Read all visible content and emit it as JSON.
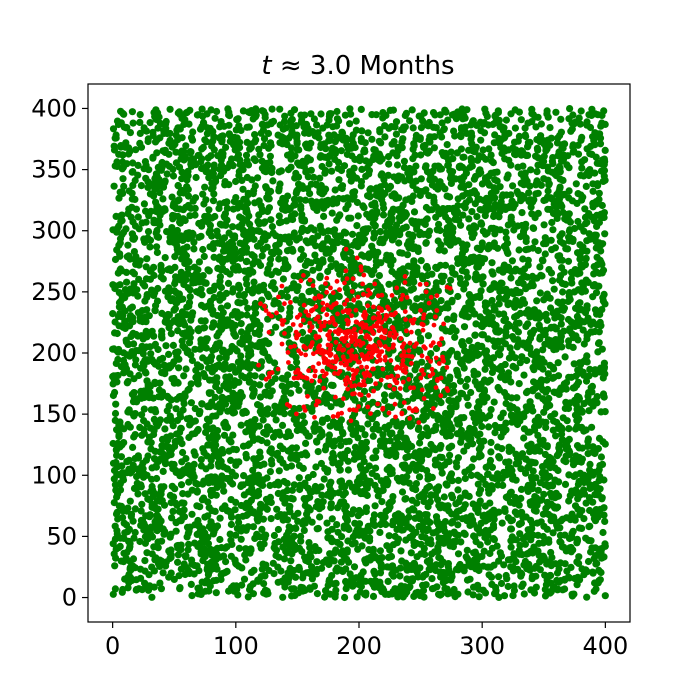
{
  "chart_data": {
    "type": "scatter",
    "title_math": "t ≈",
    "title_rest": "3.0 Months",
    "xlabel": "",
    "ylabel": "",
    "xlim": [
      -20,
      420
    ],
    "ylim": [
      -20,
      420
    ],
    "grid": false,
    "x_ticks": [
      0,
      100,
      200,
      300,
      400
    ],
    "y_ticks": [
      0,
      50,
      100,
      150,
      200,
      250,
      300,
      350,
      400
    ],
    "x_tick_labels": [
      "0",
      "100",
      "200",
      "300",
      "400"
    ],
    "y_tick_labels": [
      "0",
      "50",
      "100",
      "150",
      "200",
      "250",
      "300",
      "350",
      "400"
    ],
    "series": [
      {
        "color": "#008000",
        "distribution": "uniform",
        "x_range": [
          0,
          400
        ],
        "y_range": [
          0,
          400
        ],
        "count": 6500
      },
      {
        "color": "#ff0000",
        "distribution": "cluster",
        "center": [
          200,
          205
        ],
        "spread": [
          35,
          30
        ],
        "x_range": [
          115,
          280
        ],
        "y_range": [
          140,
          285
        ],
        "count": 520
      }
    ]
  }
}
